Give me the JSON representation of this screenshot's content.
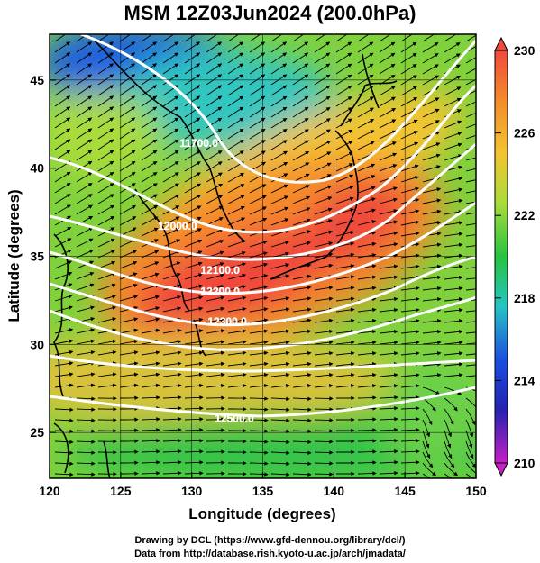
{
  "title": "MSM 12Z03Jun2024 (200.0hPa)",
  "axes": {
    "xlabel": "Longitude (degrees)",
    "ylabel": "Latitude (degrees)",
    "x_ticks": [
      "120",
      "125",
      "130",
      "135",
      "140",
      "145",
      "150"
    ],
    "y_ticks": [
      "25",
      "30",
      "35",
      "40",
      "45"
    ],
    "xlim": [
      120,
      150
    ],
    "ylim": [
      22.4,
      47.6
    ]
  },
  "colorbar": {
    "ticks": [
      "230",
      "226",
      "222",
      "218",
      "214",
      "210"
    ],
    "range": [
      210,
      230
    ],
    "colors_top_to_bottom": [
      "#f04a3a",
      "#f58a2a",
      "#f3c432",
      "#a8dc3a",
      "#25c43f",
      "#26c4c4",
      "#1a4fe0",
      "#2323b0",
      "#c81ec8"
    ]
  },
  "contours": [
    {
      "label": "12000.0",
      "lon": 129.0,
      "lat": 36.5
    },
    {
      "label": "12100.0",
      "lon": 132.0,
      "lat": 34.0
    },
    {
      "label": "12200.0",
      "lon": 132.0,
      "lat": 32.8
    },
    {
      "label": "12300.0",
      "lon": 132.5,
      "lat": 31.1
    },
    {
      "label": "12500.0",
      "lon": 133.0,
      "lat": 25.6
    },
    {
      "label": "11700.0",
      "lon": 130.5,
      "lat": 41.2
    }
  ],
  "credits": {
    "line1": "Drawing by DCL (https://www.gfd-dennou.org/library/dcl/)",
    "line2": "Data from http://database.rish.kyoto-u.ac.jp/arch/jmadata/"
  }
}
